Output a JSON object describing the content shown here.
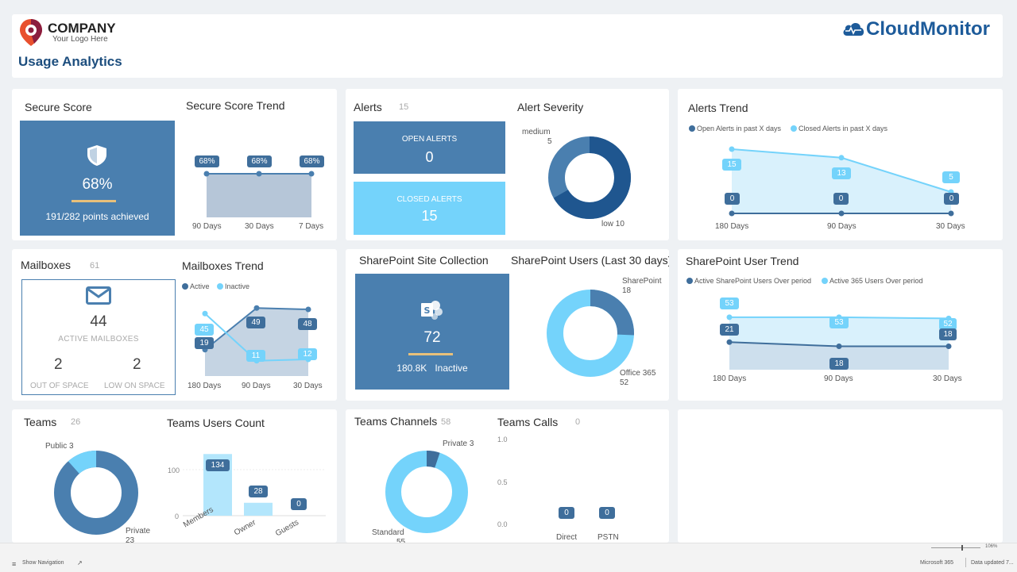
{
  "header": {
    "company_name": "COMPANY",
    "company_tagline": "Your Logo Here",
    "page_title": "Usage Analytics",
    "brand": "CloudMonitor",
    "colors": {
      "accent_dark": "#3f6e9b",
      "accent_light": "#74d3fb",
      "brand_blue": "#1d5b9a",
      "gold": "#e8c07a"
    }
  },
  "secure_score": {
    "title": "Secure Score",
    "percent": "68%",
    "percent_value": 68,
    "points": "191/282 points achieved",
    "trend_title": "Secure Score Trend",
    "trend_labels": [
      "68%",
      "68%",
      "68%"
    ],
    "trend_x": [
      "90 Days",
      "30 Days",
      "7 Days"
    ]
  },
  "alerts": {
    "title": "Alerts",
    "count": "15",
    "open_label": "OPEN ALERTS",
    "open_value": "0",
    "closed_label": "CLOSED ALERTS",
    "closed_value": "15",
    "severity_title": "Alert Severity",
    "severity_medium_label": "medium",
    "severity_medium_value": "5",
    "severity_low_label": "low 10",
    "severity_values": {
      "medium": 5,
      "low": 10
    }
  },
  "alerts_trend": {
    "title": "Alerts Trend",
    "legend_open": "Open Alerts in past X days",
    "legend_closed": "Closed Alerts in past X days",
    "x": [
      "180 Days",
      "90 Days",
      "30 Days"
    ],
    "open": [
      "0",
      "0",
      "0"
    ],
    "closed": [
      "15",
      "13",
      "5"
    ]
  },
  "mailboxes": {
    "title": "Mailboxes",
    "count": "61",
    "active_value": "44",
    "active_label": "ACTIVE MAILBOXES",
    "out_of_space_value": "2",
    "out_of_space_label": "OUT OF SPACE",
    "low_on_space_value": "2",
    "low_on_space_label": "LOW ON SPACE",
    "trend_title": "Mailboxes Trend",
    "legend_active": "Active",
    "legend_inactive": "Inactive",
    "x": [
      "180 Days",
      "90 Days",
      "30 Days"
    ],
    "active": [
      "19",
      "49",
      "48"
    ],
    "inactive": [
      "45",
      "11",
      "12"
    ]
  },
  "sharepoint": {
    "title": "SharePoint Site Collection",
    "site_count": "72",
    "inactive_text": "180.8K",
    "inactive_label": "Inactive",
    "users_title": "SharePoint Users (Last 30 days)",
    "users_sp_label": "SharePoint",
    "users_sp_value": "18",
    "users_o365_label": "Office 365",
    "users_o365_value": "52",
    "users_values": {
      "sharepoint": 18,
      "office365": 52
    }
  },
  "sharepoint_trend": {
    "title": "SharePoint User Trend",
    "legend_active": "Active SharePoint Users Over period",
    "legend_365": "Active 365 Users Over period",
    "x": [
      "180 Days",
      "90 Days",
      "30 Days"
    ],
    "sp": [
      "21",
      "18",
      "18"
    ],
    "o365": [
      "53",
      "53",
      "52"
    ]
  },
  "teams": {
    "title": "Teams",
    "count": "26",
    "public_label": "Public 3",
    "private_label": "Private",
    "private_value": "23",
    "donut_values": {
      "public": 3,
      "private": 23
    },
    "users_title": "Teams Users Count",
    "users_axis": [
      "100",
      "0"
    ],
    "users_categories": [
      "Members",
      "Owner",
      "Guests"
    ],
    "users_values": [
      "134",
      "28",
      "0"
    ]
  },
  "teams_channels": {
    "title": "Teams Channels",
    "count": "58",
    "private_label": "Private 3",
    "standard_label": "Standard",
    "standard_value": "55",
    "donut_values": {
      "private": 3,
      "standard": 55
    },
    "calls_title": "Teams Calls",
    "calls_count": "0",
    "calls_axis": [
      "1.0",
      "0.5",
      "0.0"
    ],
    "calls_categories": [
      "Direct",
      "PSTN"
    ],
    "calls_values": [
      "0",
      "0"
    ]
  },
  "footer": {
    "show_navigation": "Show Navigation",
    "zoom": "106%",
    "product": "Microsoft 365",
    "data_updated": "Data updated 7..."
  },
  "chart_data": [
    {
      "type": "line",
      "title": "Secure Score Trend",
      "categories": [
        "90 Days",
        "30 Days",
        "7 Days"
      ],
      "values": [
        68,
        68,
        68
      ],
      "ylabel": "%"
    },
    {
      "type": "pie",
      "title": "Alert Severity",
      "categories": [
        "medium",
        "low"
      ],
      "values": [
        5,
        10
      ]
    },
    {
      "type": "area",
      "title": "Alerts Trend",
      "categories": [
        "180 Days",
        "90 Days",
        "30 Days"
      ],
      "series": [
        {
          "name": "Open Alerts in past X days",
          "values": [
            0,
            0,
            0
          ]
        },
        {
          "name": "Closed Alerts in past X days",
          "values": [
            15,
            13,
            5
          ]
        }
      ]
    },
    {
      "type": "line",
      "title": "Mailboxes Trend",
      "categories": [
        "180 Days",
        "90 Days",
        "30 Days"
      ],
      "series": [
        {
          "name": "Active",
          "values": [
            19,
            49,
            48
          ]
        },
        {
          "name": "Inactive",
          "values": [
            45,
            11,
            12
          ]
        }
      ]
    },
    {
      "type": "pie",
      "title": "SharePoint Users (Last 30 days)",
      "categories": [
        "SharePoint",
        "Office 365"
      ],
      "values": [
        18,
        52
      ]
    },
    {
      "type": "area",
      "title": "SharePoint User Trend",
      "categories": [
        "180 Days",
        "90 Days",
        "30 Days"
      ],
      "series": [
        {
          "name": "Active SharePoint Users Over period",
          "values": [
            21,
            18,
            18
          ]
        },
        {
          "name": "Active 365 Users Over period",
          "values": [
            53,
            53,
            52
          ]
        }
      ]
    },
    {
      "type": "pie",
      "title": "Teams",
      "categories": [
        "Public",
        "Private"
      ],
      "values": [
        3,
        23
      ]
    },
    {
      "type": "bar",
      "title": "Teams Users Count",
      "categories": [
        "Members",
        "Owner",
        "Guests"
      ],
      "values": [
        134,
        28,
        0
      ],
      "ylim": [
        0,
        140
      ]
    },
    {
      "type": "pie",
      "title": "Teams Channels",
      "categories": [
        "Private",
        "Standard"
      ],
      "values": [
        3,
        55
      ]
    },
    {
      "type": "bar",
      "title": "Teams Calls",
      "categories": [
        "Direct",
        "PSTN"
      ],
      "values": [
        0,
        0
      ],
      "ylim": [
        0,
        1
      ]
    }
  ]
}
